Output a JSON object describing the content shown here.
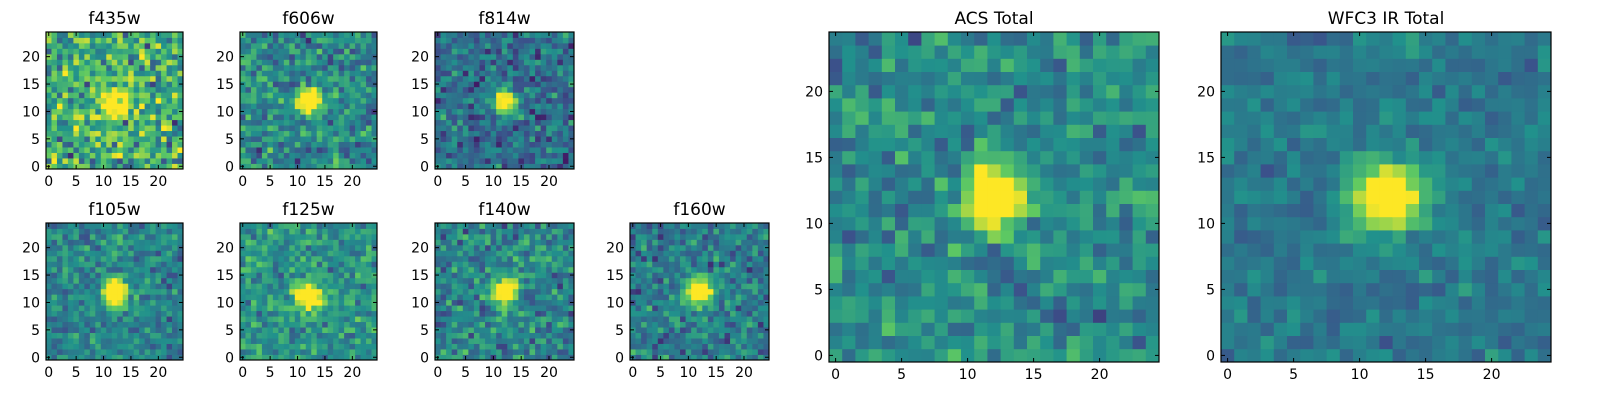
{
  "figure": {
    "colormap": "viridis",
    "colormap_stops": [
      "#440154",
      "#3b528b",
      "#21918c",
      "#5ec962",
      "#fde725"
    ]
  },
  "chart_data": [
    {
      "type": "heatmap",
      "title": "f435w",
      "size": 25,
      "center": [
        12,
        11
      ],
      "peak": 0.82,
      "sigma": 1.6,
      "background": 0.62,
      "noise": 0.26,
      "xticks": [
        "0",
        "5",
        "10",
        "15",
        "20"
      ],
      "yticks": [
        "0",
        "5",
        "10",
        "15",
        "20"
      ]
    },
    {
      "type": "heatmap",
      "title": "f606w",
      "size": 25,
      "center": [
        12,
        12
      ],
      "peak": 1.0,
      "sigma": 1.5,
      "background": 0.47,
      "noise": 0.18,
      "xticks": [
        "0",
        "5",
        "10",
        "15",
        "20"
      ],
      "yticks": [
        "0",
        "5",
        "10",
        "15",
        "20"
      ]
    },
    {
      "type": "heatmap",
      "title": "f814w",
      "size": 25,
      "center": [
        12,
        12
      ],
      "peak": 1.0,
      "sigma": 1.3,
      "background": 0.36,
      "noise": 0.17,
      "xticks": [
        "0",
        "5",
        "10",
        "15",
        "20"
      ],
      "yticks": [
        "0",
        "5",
        "10",
        "15",
        "20"
      ]
    },
    {
      "type": "heatmap",
      "title": "f105w",
      "size": 25,
      "center": [
        12,
        12
      ],
      "peak": 1.0,
      "sigma": 1.6,
      "background": 0.45,
      "noise": 0.15,
      "xticks": [
        "0",
        "5",
        "10",
        "15",
        "20"
      ],
      "yticks": [
        "0",
        "5",
        "10",
        "15",
        "20"
      ]
    },
    {
      "type": "heatmap",
      "title": "f125w",
      "size": 25,
      "center": [
        12,
        11
      ],
      "peak": 1.0,
      "sigma": 1.6,
      "background": 0.52,
      "noise": 0.16,
      "xticks": [
        "0",
        "5",
        "10",
        "15",
        "20"
      ],
      "yticks": [
        "0",
        "5",
        "10",
        "15",
        "20"
      ]
    },
    {
      "type": "heatmap",
      "title": "f140w",
      "size": 25,
      "center": [
        12,
        12
      ],
      "peak": 1.0,
      "sigma": 1.5,
      "background": 0.45,
      "noise": 0.17,
      "xticks": [
        "0",
        "5",
        "10",
        "15",
        "20"
      ],
      "yticks": [
        "0",
        "5",
        "10",
        "15",
        "20"
      ]
    },
    {
      "type": "heatmap",
      "title": "f160w",
      "size": 25,
      "center": [
        12,
        12
      ],
      "peak": 1.0,
      "sigma": 1.6,
      "background": 0.42,
      "noise": 0.16,
      "xticks": [
        "0",
        "5",
        "10",
        "15",
        "20"
      ],
      "yticks": [
        "0",
        "5",
        "10",
        "15",
        "20"
      ]
    },
    {
      "type": "heatmap",
      "title": "ACS Total",
      "size": 25,
      "center": [
        12,
        12
      ],
      "peak": 1.0,
      "sigma": 1.5,
      "background": 0.48,
      "noise": 0.14,
      "xticks": [
        "0",
        "5",
        "10",
        "15",
        "20"
      ],
      "yticks": [
        "0",
        "5",
        "10",
        "15",
        "20"
      ]
    },
    {
      "type": "heatmap",
      "title": "WFC3 IR Total",
      "size": 25,
      "center": [
        12,
        12
      ],
      "peak": 1.0,
      "sigma": 1.7,
      "background": 0.4,
      "noise": 0.09,
      "xticks": [
        "0",
        "5",
        "10",
        "15",
        "20"
      ],
      "yticks": [
        "0",
        "5",
        "10",
        "15",
        "20"
      ]
    }
  ]
}
